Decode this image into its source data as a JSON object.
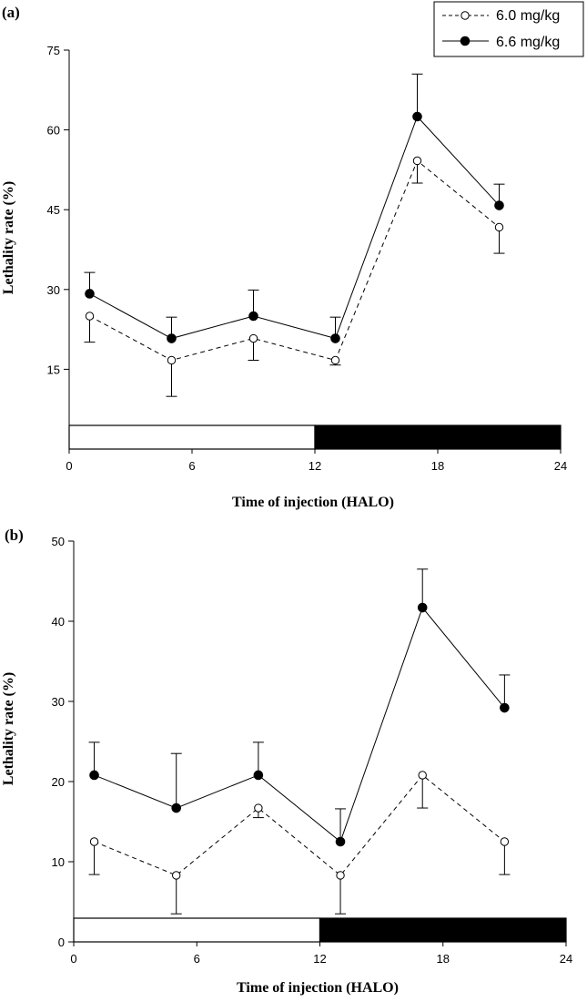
{
  "legend": {
    "items": [
      {
        "label": "6.0 mg/kg",
        "marker": "open-circle",
        "line": "dashed"
      },
      {
        "label": "6.6 mg/kg",
        "marker": "filled-circle",
        "line": "solid"
      }
    ]
  },
  "chart_data": [
    {
      "type": "line",
      "panel_label": "(a)",
      "xlabel": "Time of injection (HALO)",
      "ylabel": "Lethality rate (%)",
      "xlim": [
        0,
        24
      ],
      "ylim": [
        0,
        75
      ],
      "xticks": [
        0,
        6,
        12,
        18,
        24
      ],
      "yticks": [
        15,
        30,
        45,
        60,
        75
      ],
      "light_dark_bar": {
        "light": [
          0,
          12
        ],
        "dark": [
          12,
          24
        ]
      },
      "x": [
        1,
        5,
        9,
        13,
        17,
        21
      ],
      "series": [
        {
          "name": "6.0 mg/kg",
          "values": [
            25,
            16.7,
            20.8,
            16.7,
            54.2,
            41.7
          ],
          "error_down": [
            4.9,
            6.8,
            4.1,
            0.9,
            4.2,
            4.9
          ]
        },
        {
          "name": "6.6 mg/kg",
          "values": [
            29.2,
            20.8,
            25,
            20.8,
            62.5,
            45.8
          ],
          "error_up": [
            4.0,
            4.0,
            4.9,
            4.0,
            8.0,
            4.0
          ]
        }
      ]
    },
    {
      "type": "line",
      "panel_label": "(b)",
      "xlabel": "Time of injection (HALO)",
      "ylabel": "Lethality rate (%)",
      "xlim": [
        0,
        24
      ],
      "ylim": [
        0,
        50
      ],
      "xticks": [
        0,
        6,
        12,
        18,
        24
      ],
      "yticks": [
        0,
        10,
        20,
        30,
        40,
        50
      ],
      "light_dark_bar": {
        "light": [
          0,
          12
        ],
        "dark": [
          12,
          24
        ]
      },
      "x": [
        1,
        5,
        9,
        13,
        17,
        21
      ],
      "series": [
        {
          "name": "6.0 mg/kg",
          "values": [
            12.5,
            8.3,
            16.7,
            8.3,
            20.8,
            12.5
          ],
          "error_down": [
            4.1,
            4.8,
            1.2,
            4.8,
            4.1,
            4.1
          ]
        },
        {
          "name": "6.6 mg/kg",
          "values": [
            20.8,
            16.7,
            20.8,
            12.5,
            41.7,
            29.2
          ],
          "error_up": [
            4.1,
            6.8,
            4.1,
            4.1,
            4.8,
            4.1
          ]
        }
      ]
    }
  ]
}
